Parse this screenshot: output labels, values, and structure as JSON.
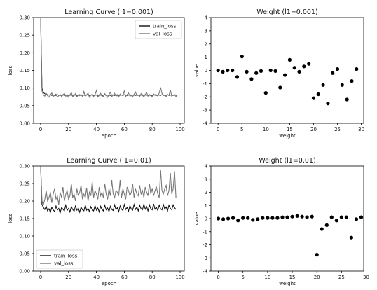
{
  "figure": {
    "background": "#ffffff",
    "axis_color": "#000000"
  },
  "chart_data": [
    {
      "type": "line",
      "title": "Learning Curve (l1=0.001)",
      "xlabel": "epoch",
      "ylabel": "loss",
      "xlim": [
        -5,
        103
      ],
      "ylim": [
        0,
        0.3
      ],
      "xticks": [
        "0",
        "20",
        "40",
        "60",
        "80",
        "100"
      ],
      "yticks": [
        "0.00",
        "0.05",
        "0.10",
        "0.15",
        "0.20",
        "0.25",
        "0.30"
      ],
      "grid": false,
      "legend": "top-right",
      "series": [
        {
          "name": "train_loss",
          "color": "#111111",
          "x": [
            0,
            1,
            2,
            3,
            4,
            5,
            6,
            7,
            8,
            9,
            10,
            11,
            12,
            13,
            14,
            15,
            16,
            17,
            18,
            19,
            20,
            21,
            22,
            23,
            24,
            25,
            26,
            27,
            28,
            29,
            30,
            31,
            32,
            33,
            34,
            35,
            36,
            37,
            38,
            39,
            40,
            41,
            42,
            43,
            44,
            45,
            46,
            47,
            48,
            49,
            50,
            51,
            52,
            53,
            54,
            55,
            56,
            57,
            58,
            59,
            60,
            61,
            62,
            63,
            64,
            65,
            66,
            67,
            68,
            69,
            70,
            71,
            72,
            73,
            74,
            75,
            76,
            77,
            78,
            79,
            80,
            81,
            82,
            83,
            84,
            85,
            86,
            87,
            88,
            89,
            90,
            91,
            92,
            93,
            94,
            95,
            96,
            97,
            98
          ],
          "values": [
            0.3,
            0.1,
            0.087,
            0.084,
            0.082,
            0.081,
            0.08,
            0.081,
            0.079,
            0.08,
            0.08,
            0.079,
            0.081,
            0.08,
            0.079,
            0.08,
            0.081,
            0.079,
            0.08,
            0.081,
            0.079,
            0.08,
            0.08,
            0.079,
            0.081,
            0.08,
            0.079,
            0.08,
            0.081,
            0.079,
            0.08,
            0.08,
            0.079,
            0.081,
            0.08,
            0.079,
            0.08,
            0.081,
            0.079,
            0.08,
            0.08,
            0.079,
            0.081,
            0.08,
            0.079,
            0.08,
            0.081,
            0.079,
            0.08,
            0.08,
            0.079,
            0.081,
            0.08,
            0.079,
            0.08,
            0.081,
            0.079,
            0.08,
            0.08,
            0.079,
            0.081,
            0.08,
            0.079,
            0.08,
            0.081,
            0.079,
            0.08,
            0.08,
            0.079,
            0.081,
            0.08,
            0.079,
            0.08,
            0.081,
            0.079,
            0.08,
            0.08,
            0.079,
            0.081,
            0.08,
            0.079,
            0.08,
            0.081,
            0.079,
            0.08,
            0.08,
            0.079,
            0.081,
            0.08,
            0.079,
            0.08,
            0.081,
            0.079,
            0.08,
            0.08,
            0.079,
            0.081,
            0.08,
            0.079
          ]
        },
        {
          "name": "val_loss",
          "color": "#777777",
          "x": [
            0,
            1,
            2,
            3,
            4,
            5,
            6,
            7,
            8,
            9,
            10,
            11,
            12,
            13,
            14,
            15,
            16,
            17,
            18,
            19,
            20,
            21,
            22,
            23,
            24,
            25,
            26,
            27,
            28,
            29,
            30,
            31,
            32,
            33,
            34,
            35,
            36,
            37,
            38,
            39,
            40,
            41,
            42,
            43,
            44,
            45,
            46,
            47,
            48,
            49,
            50,
            51,
            52,
            53,
            54,
            55,
            56,
            57,
            58,
            59,
            60,
            61,
            62,
            63,
            64,
            65,
            66,
            67,
            68,
            69,
            70,
            71,
            72,
            73,
            74,
            75,
            76,
            77,
            78,
            79,
            80,
            81,
            82,
            83,
            84,
            85,
            86,
            87,
            88,
            89,
            90,
            91,
            92,
            93,
            94,
            95,
            96,
            97,
            98
          ],
          "values": [
            0.3,
            0.092,
            0.08,
            0.077,
            0.085,
            0.078,
            0.074,
            0.08,
            0.086,
            0.076,
            0.079,
            0.083,
            0.075,
            0.078,
            0.082,
            0.076,
            0.08,
            0.085,
            0.077,
            0.079,
            0.074,
            0.081,
            0.087,
            0.076,
            0.078,
            0.084,
            0.075,
            0.08,
            0.078,
            0.082,
            0.076,
            0.09,
            0.077,
            0.08,
            0.086,
            0.074,
            0.079,
            0.083,
            0.076,
            0.081,
            0.093,
            0.075,
            0.079,
            0.085,
            0.078,
            0.076,
            0.084,
            0.079,
            0.074,
            0.082,
            0.088,
            0.076,
            0.08,
            0.085,
            0.077,
            0.079,
            0.075,
            0.083,
            0.08,
            0.078,
            0.092,
            0.076,
            0.081,
            0.086,
            0.077,
            0.079,
            0.075,
            0.082,
            0.089,
            0.078,
            0.08,
            0.076,
            0.084,
            0.079,
            0.075,
            0.082,
            0.087,
            0.077,
            0.08,
            0.078,
            0.076,
            0.083,
            0.079,
            0.081,
            0.077,
            0.086,
            0.102,
            0.085,
            0.078,
            0.08,
            0.076,
            0.082,
            0.079,
            0.095,
            0.077,
            0.08,
            0.081,
            0.076,
            0.079
          ]
        }
      ]
    },
    {
      "type": "scatter",
      "title": "Weight (l1=0.001)",
      "xlabel": "weight",
      "ylabel": "value",
      "xlim": [
        -1.5,
        30.5
      ],
      "ylim": [
        -4,
        4
      ],
      "xticks": [
        "0",
        "5",
        "10",
        "15",
        "20",
        "25",
        "30"
      ],
      "yticks": [
        "-4",
        "-3",
        "-2",
        "-1",
        "0",
        "1",
        "2",
        "3",
        "4"
      ],
      "grid": false,
      "series": [
        {
          "color": "#000000",
          "x": [
            0,
            1,
            2,
            3,
            4,
            5,
            6,
            7,
            8,
            9,
            10,
            11,
            12,
            13,
            14,
            15,
            16,
            17,
            18,
            19,
            20,
            21,
            22,
            23,
            24,
            25,
            26,
            27,
            28,
            29
          ],
          "values": [
            0.0,
            -0.1,
            0.0,
            0.0,
            -0.5,
            1.05,
            -0.1,
            -0.65,
            -0.2,
            -0.05,
            -1.7,
            0.0,
            -0.05,
            -1.3,
            -0.35,
            0.8,
            0.2,
            -0.1,
            0.3,
            0.5,
            -2.1,
            -1.8,
            -1.1,
            -2.5,
            -0.2,
            0.1,
            -1.1,
            -2.2,
            -0.8,
            0.1
          ]
        }
      ]
    },
    {
      "type": "line",
      "title": "Learning Curve (l1=0.01)",
      "xlabel": "epoch",
      "ylabel": "loss",
      "xlim": [
        -5,
        103
      ],
      "ylim": [
        0,
        0.3
      ],
      "xticks": [
        "0",
        "20",
        "40",
        "60",
        "80",
        "100"
      ],
      "yticks": [
        "0.00",
        "0.05",
        "0.10",
        "0.15",
        "0.20",
        "0.25",
        "0.30"
      ],
      "grid": false,
      "legend": "bottom-left",
      "series": [
        {
          "name": "train_loss",
          "color": "#111111",
          "x": [
            0,
            1,
            2,
            3,
            4,
            5,
            6,
            7,
            8,
            9,
            10,
            11,
            12,
            13,
            14,
            15,
            16,
            17,
            18,
            19,
            20,
            21,
            22,
            23,
            24,
            25,
            26,
            27,
            28,
            29,
            30,
            31,
            32,
            33,
            34,
            35,
            36,
            37,
            38,
            39,
            40,
            41,
            42,
            43,
            44,
            45,
            46,
            47,
            48,
            49,
            50,
            51,
            52,
            53,
            54,
            55,
            56,
            57,
            58,
            59,
            60,
            61,
            62,
            63,
            64,
            65,
            66,
            67,
            68,
            69,
            70,
            71,
            72,
            73,
            74,
            75,
            76,
            77,
            78,
            79,
            80,
            81,
            82,
            83,
            84,
            85,
            86,
            87,
            88,
            89,
            90,
            91,
            92,
            93,
            94,
            95,
            96,
            97
          ],
          "values": [
            0.3,
            0.19,
            0.182,
            0.176,
            0.185,
            0.172,
            0.178,
            0.168,
            0.182,
            0.175,
            0.17,
            0.186,
            0.174,
            0.179,
            0.166,
            0.181,
            0.177,
            0.172,
            0.188,
            0.173,
            0.179,
            0.169,
            0.184,
            0.176,
            0.171,
            0.186,
            0.174,
            0.18,
            0.168,
            0.183,
            0.175,
            0.172,
            0.188,
            0.174,
            0.179,
            0.17,
            0.184,
            0.176,
            0.172,
            0.187,
            0.174,
            0.18,
            0.169,
            0.185,
            0.176,
            0.172,
            0.188,
            0.175,
            0.18,
            0.17,
            0.185,
            0.176,
            0.173,
            0.189,
            0.175,
            0.181,
            0.17,
            0.186,
            0.177,
            0.173,
            0.19,
            0.176,
            0.182,
            0.171,
            0.187,
            0.177,
            0.174,
            0.19,
            0.176,
            0.183,
            0.172,
            0.188,
            0.178,
            0.175,
            0.191,
            0.177,
            0.184,
            0.172,
            0.189,
            0.178,
            0.175,
            0.192,
            0.177,
            0.182,
            0.173,
            0.188,
            0.178,
            0.175,
            0.19,
            0.177,
            0.183,
            0.172,
            0.188,
            0.179,
            0.175,
            0.189,
            0.181,
            0.176
          ]
        },
        {
          "name": "val_loss",
          "color": "#777777",
          "x": [
            0,
            1,
            2,
            3,
            4,
            5,
            6,
            7,
            8,
            9,
            10,
            11,
            12,
            13,
            14,
            15,
            16,
            17,
            18,
            19,
            20,
            21,
            22,
            23,
            24,
            25,
            26,
            27,
            28,
            29,
            30,
            31,
            32,
            33,
            34,
            35,
            36,
            37,
            38,
            39,
            40,
            41,
            42,
            43,
            44,
            45,
            46,
            47,
            48,
            49,
            50,
            51,
            52,
            53,
            54,
            55,
            56,
            57,
            58,
            59,
            60,
            61,
            62,
            63,
            64,
            65,
            66,
            67,
            68,
            69,
            70,
            71,
            72,
            73,
            74,
            75,
            76,
            77,
            78,
            79,
            80,
            81,
            82,
            83,
            84,
            85,
            86,
            87,
            88,
            89,
            90,
            91,
            92,
            93,
            94,
            95,
            96,
            97
          ],
          "values": [
            0.3,
            0.2,
            0.19,
            0.205,
            0.23,
            0.2,
            0.21,
            0.225,
            0.195,
            0.22,
            0.235,
            0.205,
            0.215,
            0.19,
            0.225,
            0.21,
            0.24,
            0.2,
            0.22,
            0.23,
            0.205,
            0.215,
            0.25,
            0.21,
            0.22,
            0.2,
            0.235,
            0.215,
            0.225,
            0.245,
            0.205,
            0.22,
            0.21,
            0.238,
            0.2,
            0.225,
            0.215,
            0.255,
            0.21,
            0.23,
            0.22,
            0.205,
            0.24,
            0.215,
            0.225,
            0.21,
            0.25,
            0.22,
            0.205,
            0.235,
            0.215,
            0.26,
            0.22,
            0.21,
            0.23,
            0.225,
            0.215,
            0.26,
            0.21,
            0.235,
            0.22,
            0.205,
            0.24,
            0.23,
            0.215,
            0.225,
            0.25,
            0.21,
            0.235,
            0.22,
            0.215,
            0.245,
            0.22,
            0.23,
            0.21,
            0.24,
            0.225,
            0.215,
            0.25,
            0.22,
            0.235,
            0.215,
            0.23,
            0.24,
            0.22,
            0.21,
            0.288,
            0.23,
            0.22,
            0.235,
            0.245,
            0.215,
            0.23,
            0.28,
            0.22,
            0.235,
            0.285,
            0.21
          ]
        }
      ]
    },
    {
      "type": "scatter",
      "title": "Weight (l1=0.01)",
      "xlabel": "weight",
      "ylabel": "value",
      "xlim": [
        -1.5,
        29.5
      ],
      "ylim": [
        -4,
        4
      ],
      "xticks": [
        "0",
        "5",
        "10",
        "15",
        "20",
        "25",
        "30"
      ],
      "yticks": [
        "-4",
        "-3",
        "-2",
        "-1",
        "0",
        "1",
        "2",
        "3",
        "4"
      ],
      "grid": false,
      "series": [
        {
          "color": "#000000",
          "x": [
            0,
            1,
            2,
            3,
            4,
            5,
            6,
            7,
            8,
            9,
            10,
            11,
            12,
            13,
            14,
            15,
            16,
            17,
            18,
            19,
            20,
            21,
            22,
            23,
            24,
            25,
            26,
            27,
            28,
            29
          ],
          "values": [
            0.0,
            -0.05,
            0.0,
            0.05,
            -0.15,
            0.05,
            0.05,
            -0.1,
            -0.05,
            0.05,
            0.05,
            0.05,
            0.05,
            0.1,
            0.1,
            0.15,
            0.2,
            0.15,
            0.1,
            0.15,
            -2.75,
            -0.8,
            -0.5,
            0.1,
            -0.15,
            0.1,
            0.1,
            -1.45,
            -0.05,
            0.1
          ]
        }
      ]
    }
  ]
}
